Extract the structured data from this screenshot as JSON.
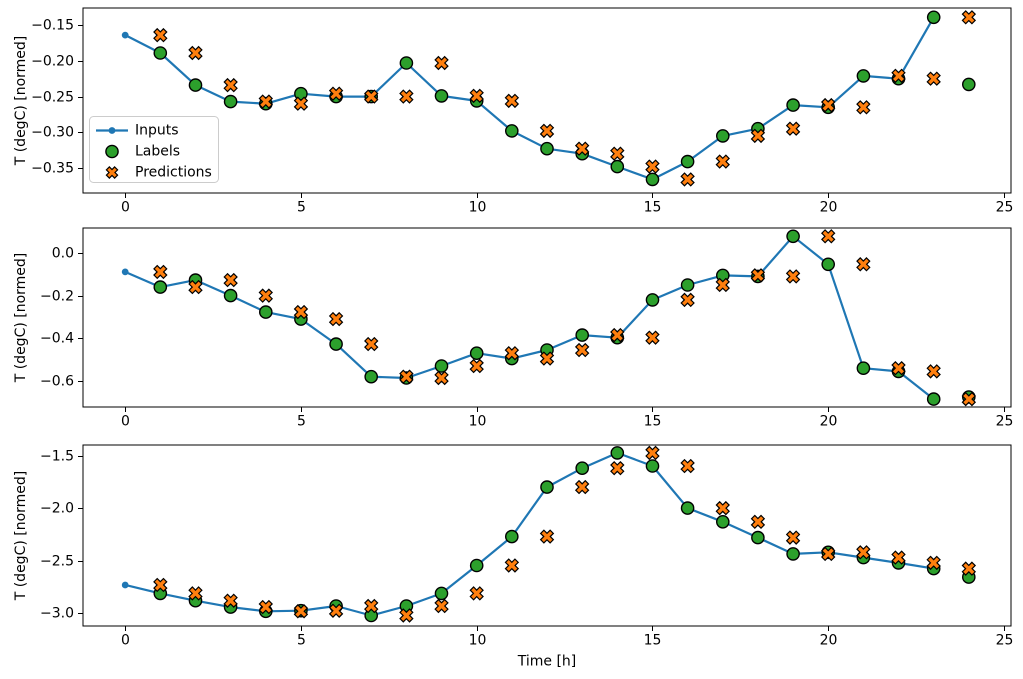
{
  "figure": {
    "xlabel": "Time [h]",
    "ylabel": "T (degC) [normed]",
    "background": "#ffffff"
  },
  "style": {
    "inputs_color": "#1f77b4",
    "labels_color": "#2ca02c",
    "predictions_color": "#ff7f0e",
    "marker_edge_color": "#000000",
    "axis_color": "#000000",
    "legend_border_color": "#cccccc",
    "legend_background": "#ffffff"
  },
  "legend": {
    "position": "upper-left-of-first-subplot",
    "items": [
      {
        "label": "Inputs",
        "marker": "line-with-dot"
      },
      {
        "label": "Labels",
        "marker": "circle"
      },
      {
        "label": "Predictions",
        "marker": "x-cross"
      }
    ]
  },
  "chart_data": [
    {
      "type": "line",
      "title": "",
      "xlabel": "",
      "ylabel": "T (degC) [normed]",
      "xlim": [
        -1.2,
        25.2
      ],
      "ylim": [
        -0.385,
        -0.126
      ],
      "xticks": [
        {
          "v": 0,
          "label": "0"
        },
        {
          "v": 5,
          "label": "5"
        },
        {
          "v": 10,
          "label": "10"
        },
        {
          "v": 15,
          "label": "15"
        },
        {
          "v": 20,
          "label": "20"
        },
        {
          "v": 25,
          "label": "25"
        }
      ],
      "yticks": [
        {
          "v": -0.15,
          "label": "−0.15"
        },
        {
          "v": -0.2,
          "label": "−0.20"
        },
        {
          "v": -0.25,
          "label": "−0.25"
        },
        {
          "v": -0.3,
          "label": "−0.30"
        },
        {
          "v": -0.35,
          "label": "−0.35"
        }
      ],
      "show_legend": true,
      "series": [
        {
          "name": "Inputs",
          "kind": "line",
          "x": [
            0,
            1,
            2,
            3,
            4,
            5,
            6,
            7,
            8,
            9,
            10,
            11,
            12,
            13,
            14,
            15,
            16,
            17,
            18,
            19,
            20,
            21,
            22,
            23
          ],
          "y": [
            -0.164,
            -0.189,
            -0.234,
            -0.257,
            -0.26,
            -0.246,
            -0.25,
            -0.25,
            -0.203,
            -0.249,
            -0.256,
            -0.298,
            -0.323,
            -0.33,
            -0.348,
            -0.366,
            -0.341,
            -0.305,
            -0.295,
            -0.262,
            -0.265,
            -0.221,
            -0.225,
            -0.139
          ]
        },
        {
          "name": "Labels",
          "kind": "scatter-circle",
          "x": [
            1,
            2,
            3,
            4,
            5,
            6,
            7,
            8,
            9,
            10,
            11,
            12,
            13,
            14,
            15,
            16,
            17,
            18,
            19,
            20,
            21,
            22,
            23,
            24
          ],
          "y": [
            -0.189,
            -0.234,
            -0.257,
            -0.26,
            -0.246,
            -0.25,
            -0.25,
            -0.203,
            -0.249,
            -0.256,
            -0.298,
            -0.323,
            -0.33,
            -0.348,
            -0.366,
            -0.341,
            -0.305,
            -0.295,
            -0.262,
            -0.265,
            -0.221,
            -0.225,
            -0.139,
            -0.233
          ]
        },
        {
          "name": "Predictions",
          "kind": "scatter-x",
          "x": [
            1,
            2,
            3,
            4,
            5,
            6,
            7,
            8,
            9,
            10,
            11,
            12,
            13,
            14,
            15,
            16,
            17,
            18,
            19,
            20,
            21,
            22,
            23,
            24
          ],
          "y": [
            -0.164,
            -0.189,
            -0.234,
            -0.257,
            -0.26,
            -0.246,
            -0.25,
            -0.25,
            -0.203,
            -0.249,
            -0.256,
            -0.298,
            -0.323,
            -0.33,
            -0.348,
            -0.366,
            -0.341,
            -0.305,
            -0.295,
            -0.262,
            -0.265,
            -0.221,
            -0.225,
            -0.139
          ]
        }
      ]
    },
    {
      "type": "line",
      "title": "",
      "xlabel": "",
      "ylabel": "T (degC) [normed]",
      "xlim": [
        -1.2,
        25.2
      ],
      "ylim": [
        -0.722,
        0.117
      ],
      "xticks": [
        {
          "v": 0,
          "label": "0"
        },
        {
          "v": 5,
          "label": "5"
        },
        {
          "v": 10,
          "label": "10"
        },
        {
          "v": 15,
          "label": "15"
        },
        {
          "v": 20,
          "label": "20"
        },
        {
          "v": 25,
          "label": "25"
        }
      ],
      "yticks": [
        {
          "v": 0.0,
          "label": "0.0"
        },
        {
          "v": -0.2,
          "label": "−0.2"
        },
        {
          "v": -0.4,
          "label": "−0.4"
        },
        {
          "v": -0.6,
          "label": "−0.6"
        }
      ],
      "show_legend": false,
      "series": [
        {
          "name": "Inputs",
          "kind": "line",
          "x": [
            0,
            1,
            2,
            3,
            4,
            5,
            6,
            7,
            8,
            9,
            10,
            11,
            12,
            13,
            14,
            15,
            16,
            17,
            18,
            19,
            20,
            21,
            22,
            23
          ],
          "y": [
            -0.089,
            -0.16,
            -0.127,
            -0.2,
            -0.277,
            -0.31,
            -0.427,
            -0.58,
            -0.586,
            -0.53,
            -0.47,
            -0.495,
            -0.455,
            -0.385,
            -0.397,
            -0.22,
            -0.15,
            -0.105,
            -0.11,
            0.078,
            -0.053,
            -0.54,
            -0.555,
            -0.685
          ]
        },
        {
          "name": "Labels",
          "kind": "scatter-circle",
          "x": [
            1,
            2,
            3,
            4,
            5,
            6,
            7,
            8,
            9,
            10,
            11,
            12,
            13,
            14,
            15,
            16,
            17,
            18,
            19,
            20,
            21,
            22,
            23,
            24
          ],
          "y": [
            -0.16,
            -0.127,
            -0.2,
            -0.277,
            -0.31,
            -0.427,
            -0.58,
            -0.586,
            -0.53,
            -0.47,
            -0.495,
            -0.455,
            -0.385,
            -0.397,
            -0.22,
            -0.15,
            -0.105,
            -0.11,
            0.078,
            -0.053,
            -0.54,
            -0.555,
            -0.685,
            -0.675
          ]
        },
        {
          "name": "Predictions",
          "kind": "scatter-x",
          "x": [
            1,
            2,
            3,
            4,
            5,
            6,
            7,
            8,
            9,
            10,
            11,
            12,
            13,
            14,
            15,
            16,
            17,
            18,
            19,
            20,
            21,
            22,
            23,
            24
          ],
          "y": [
            -0.089,
            -0.16,
            -0.127,
            -0.2,
            -0.277,
            -0.31,
            -0.427,
            -0.58,
            -0.586,
            -0.53,
            -0.47,
            -0.495,
            -0.455,
            -0.385,
            -0.397,
            -0.22,
            -0.15,
            -0.105,
            -0.11,
            0.078,
            -0.053,
            -0.54,
            -0.555,
            -0.685
          ]
        }
      ]
    },
    {
      "type": "line",
      "title": "",
      "xlabel": "Time [h]",
      "ylabel": "T (degC) [normed]",
      "xlim": [
        -1.2,
        25.2
      ],
      "ylim": [
        -3.12,
        -1.4
      ],
      "xticks": [
        {
          "v": 0,
          "label": "0"
        },
        {
          "v": 5,
          "label": "5"
        },
        {
          "v": 10,
          "label": "10"
        },
        {
          "v": 15,
          "label": "15"
        },
        {
          "v": 20,
          "label": "20"
        },
        {
          "v": 25,
          "label": "25"
        }
      ],
      "yticks": [
        {
          "v": -1.5,
          "label": "−1.5"
        },
        {
          "v": -2.0,
          "label": "−2.0"
        },
        {
          "v": -2.5,
          "label": "−2.5"
        },
        {
          "v": -3.0,
          "label": "−3.0"
        }
      ],
      "show_legend": false,
      "series": [
        {
          "name": "Inputs",
          "kind": "line",
          "x": [
            0,
            1,
            2,
            3,
            4,
            5,
            6,
            7,
            8,
            9,
            10,
            11,
            12,
            13,
            14,
            15,
            16,
            17,
            18,
            19,
            20,
            21,
            22,
            23
          ],
          "y": [
            -2.73,
            -2.81,
            -2.88,
            -2.94,
            -2.98,
            -2.975,
            -2.93,
            -3.02,
            -2.93,
            -2.81,
            -2.545,
            -2.27,
            -1.8,
            -1.62,
            -1.475,
            -1.6,
            -2.0,
            -2.13,
            -2.28,
            -2.435,
            -2.42,
            -2.47,
            -2.52,
            -2.575
          ]
        },
        {
          "name": "Labels",
          "kind": "scatter-circle",
          "x": [
            1,
            2,
            3,
            4,
            5,
            6,
            7,
            8,
            9,
            10,
            11,
            12,
            13,
            14,
            15,
            16,
            17,
            18,
            19,
            20,
            21,
            22,
            23,
            24
          ],
          "y": [
            -2.81,
            -2.88,
            -2.94,
            -2.98,
            -2.975,
            -2.93,
            -3.02,
            -2.93,
            -2.81,
            -2.545,
            -2.27,
            -1.8,
            -1.62,
            -1.475,
            -1.6,
            -2.0,
            -2.13,
            -2.28,
            -2.435,
            -2.42,
            -2.47,
            -2.52,
            -2.575,
            -2.655
          ]
        },
        {
          "name": "Predictions",
          "kind": "scatter-x",
          "x": [
            1,
            2,
            3,
            4,
            5,
            6,
            7,
            8,
            9,
            10,
            11,
            12,
            13,
            14,
            15,
            16,
            17,
            18,
            19,
            20,
            21,
            22,
            23,
            24
          ],
          "y": [
            -2.73,
            -2.81,
            -2.88,
            -2.94,
            -2.98,
            -2.975,
            -2.93,
            -3.02,
            -2.93,
            -2.81,
            -2.545,
            -2.27,
            -1.8,
            -1.62,
            -1.475,
            -1.6,
            -2.0,
            -2.13,
            -2.28,
            -2.435,
            -2.42,
            -2.47,
            -2.52,
            -2.575
          ]
        }
      ]
    }
  ]
}
